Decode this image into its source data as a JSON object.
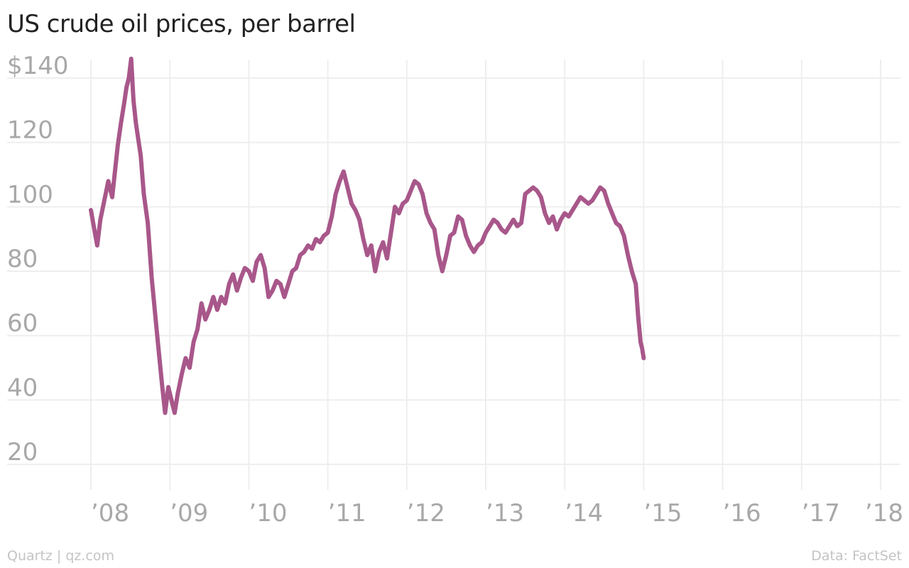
{
  "title": "US crude oil prices, per barrel",
  "footer": {
    "credit": "Quartz | qz.com",
    "source": "Data: FactSet"
  },
  "colors": {
    "line": "#a8578a",
    "grid": "#eeeeee",
    "tick_text": "#a8a8a8",
    "title": "#222222",
    "footer_text": "#c4c4c4"
  },
  "chart_data": {
    "type": "line",
    "title": "US crude oil prices, per barrel",
    "xlabel": "",
    "ylabel": "",
    "xlim": [
      2008.0,
      2018.0
    ],
    "ylim": [
      20,
      140
    ],
    "grid": true,
    "y_ticks": [
      20,
      40,
      60,
      80,
      100,
      120,
      140
    ],
    "y_tick_labels": [
      "20",
      "40",
      "60",
      "80",
      "100",
      "120",
      "$140"
    ],
    "x_ticks": [
      2008,
      2009,
      2010,
      2011,
      2012,
      2013,
      2014,
      2015,
      2016,
      2017,
      2018
    ],
    "x_tick_labels": [
      "’08",
      "’09",
      "’10",
      "’11",
      "’12",
      "’13",
      "’14",
      "’15",
      "’16",
      "’17",
      "’18"
    ],
    "series": [
      {
        "x": [
          2008.0,
          2008.05,
          2008.08,
          2008.12,
          2008.17,
          2008.22,
          2008.27,
          2008.3,
          2008.34,
          2008.38,
          2008.42,
          2008.45,
          2008.48,
          2008.51,
          2008.54,
          2008.57,
          2008.6,
          2008.63,
          2008.67,
          2008.72,
          2008.77,
          2008.82,
          2008.86,
          2008.9,
          2008.94,
          2008.98,
          2009.02,
          2009.06,
          2009.1,
          2009.15,
          2009.2,
          2009.25,
          2009.3,
          2009.35,
          2009.4,
          2009.45,
          2009.5,
          2009.55,
          2009.6,
          2009.65,
          2009.7,
          2009.75,
          2009.8,
          2009.85,
          2009.9,
          2009.95,
          2010.0,
          2010.05,
          2010.1,
          2010.15,
          2010.2,
          2010.25,
          2010.3,
          2010.35,
          2010.4,
          2010.45,
          2010.5,
          2010.55,
          2010.6,
          2010.65,
          2010.7,
          2010.75,
          2010.8,
          2010.85,
          2010.9,
          2010.95,
          2011.0,
          2011.05,
          2011.1,
          2011.15,
          2011.2,
          2011.25,
          2011.3,
          2011.35,
          2011.4,
          2011.45,
          2011.5,
          2011.55,
          2011.6,
          2011.65,
          2011.7,
          2011.75,
          2011.8,
          2011.85,
          2011.9,
          2011.95,
          2012.0,
          2012.05,
          2012.1,
          2012.15,
          2012.2,
          2012.25,
          2012.3,
          2012.35,
          2012.4,
          2012.45,
          2012.5,
          2012.55,
          2012.6,
          2012.65,
          2012.7,
          2012.75,
          2012.8,
          2012.85,
          2012.9,
          2012.95,
          2013.0,
          2013.05,
          2013.1,
          2013.15,
          2013.2,
          2013.25,
          2013.3,
          2013.35,
          2013.4,
          2013.45,
          2013.5,
          2013.55,
          2013.6,
          2013.65,
          2013.7,
          2013.75,
          2013.8,
          2013.85,
          2013.9,
          2013.95,
          2014.0,
          2014.05,
          2014.1,
          2014.15,
          2014.2,
          2014.25,
          2014.3,
          2014.35,
          2014.4,
          2014.45,
          2014.5,
          2014.55,
          2014.6,
          2014.65,
          2014.7,
          2014.75,
          2014.8,
          2014.85,
          2014.9,
          2014.93,
          2014.96,
          2014.98,
          2015.0
        ],
        "values": [
          99,
          92,
          88,
          96,
          102,
          108,
          103,
          110,
          119,
          126,
          132,
          137,
          140,
          146,
          133,
          126,
          121,
          116,
          104,
          95,
          78,
          65,
          55,
          45,
          36,
          44,
          40,
          36,
          42,
          48,
          53,
          50,
          58,
          62,
          70,
          65,
          68,
          72,
          68,
          72,
          70,
          76,
          79,
          74,
          78,
          81,
          80,
          77,
          83,
          85,
          81,
          72,
          74,
          77,
          76,
          72,
          76,
          80,
          81,
          85,
          86,
          88,
          87,
          90,
          89,
          91,
          92,
          97,
          104,
          108,
          111,
          106,
          101,
          99,
          96,
          90,
          85,
          88,
          80,
          86,
          89,
          84,
          92,
          100,
          98,
          101,
          102,
          105,
          108,
          107,
          104,
          98,
          95,
          93,
          85,
          80,
          85,
          91,
          92,
          97,
          96,
          91,
          88,
          86,
          88,
          89,
          92,
          94,
          96,
          95,
          93,
          92,
          94,
          96,
          94,
          95,
          104,
          105,
          106,
          105,
          103,
          98,
          95,
          97,
          93,
          96,
          98,
          97,
          99,
          101,
          103,
          102,
          101,
          102,
          104,
          106,
          105,
          101,
          98,
          95,
          94,
          91,
          85,
          80,
          76,
          66,
          58,
          56,
          53
        ]
      }
    ]
  }
}
